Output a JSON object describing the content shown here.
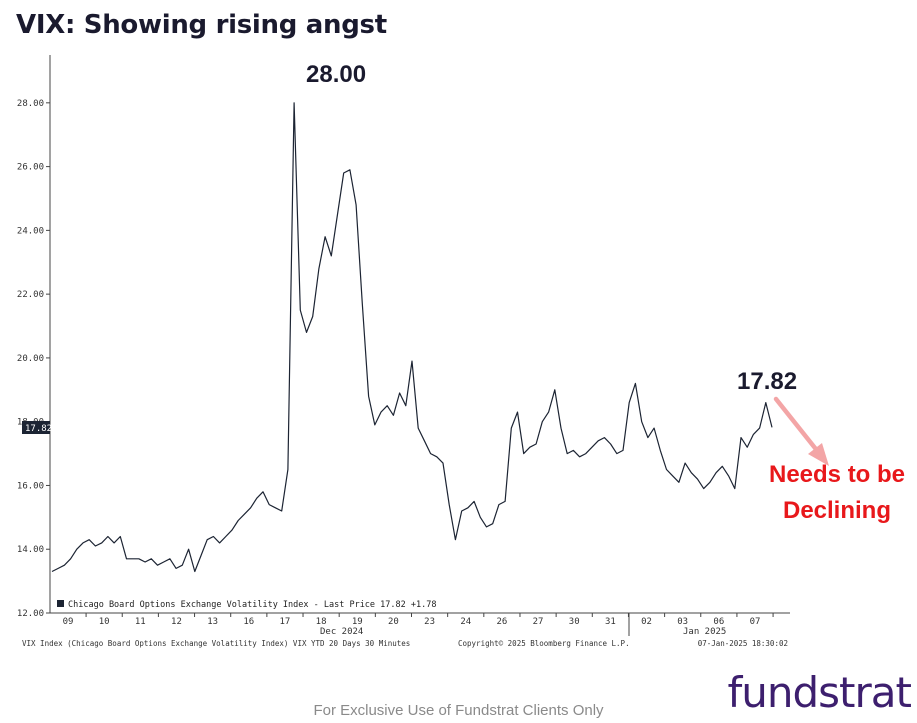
{
  "title": "VIX: Showing rising angst",
  "chart_data": {
    "type": "line",
    "series": [
      {
        "name": "Chicago Board Options Exchange Volatility Index - Last Price",
        "values": [
          13.3,
          13.4,
          13.5,
          13.7,
          14.0,
          14.2,
          14.3,
          14.1,
          14.2,
          14.4,
          14.2,
          14.4,
          13.7,
          13.7,
          13.7,
          13.6,
          13.7,
          13.5,
          13.6,
          13.7,
          13.4,
          13.5,
          14.0,
          13.3,
          13.8,
          14.3,
          14.4,
          14.2,
          14.4,
          14.6,
          14.9,
          15.1,
          15.3,
          15.6,
          15.8,
          15.4,
          15.3,
          15.2,
          16.5,
          28.0,
          21.5,
          20.8,
          21.3,
          22.8,
          23.8,
          23.2,
          24.5,
          25.8,
          25.9,
          24.8,
          21.7,
          18.8,
          17.9,
          18.3,
          18.5,
          18.2,
          18.9,
          18.5,
          19.9,
          17.8,
          17.4,
          17.0,
          16.9,
          16.7,
          15.4,
          14.3,
          15.2,
          15.3,
          15.5,
          15.0,
          14.7,
          14.8,
          15.4,
          15.5,
          17.8,
          18.3,
          17.0,
          17.2,
          17.3,
          18.0,
          18.3,
          19.0,
          17.8,
          17.0,
          17.1,
          16.9,
          17.0,
          17.2,
          17.4,
          17.5,
          17.3,
          17.0,
          17.1,
          18.6,
          19.2,
          18.0,
          17.5,
          17.8,
          17.1,
          16.5,
          16.3,
          16.1,
          16.7,
          16.4,
          16.2,
          15.9,
          16.1,
          16.4,
          16.6,
          16.3,
          15.9,
          17.5,
          17.2,
          17.6,
          17.8,
          18.6,
          17.82
        ]
      }
    ],
    "ylim": [
      12,
      29.5
    ],
    "yticks": [
      "12.00",
      "14.00",
      "16.00",
      "18.00",
      "20.00",
      "22.00",
      "24.00",
      "26.00",
      "28.00"
    ],
    "x_tick_labels": [
      "09",
      "10",
      "11",
      "12",
      "13",
      "16",
      "17",
      "18",
      "19",
      "20",
      "23",
      "24",
      "26",
      "27",
      "30",
      "31",
      "02",
      "03",
      "06",
      "07"
    ],
    "month_labels": [
      "Dec 2024",
      "Jan 2025"
    ],
    "last_price_label": "17.82",
    "legend": "Chicago Board Options Exchange Volatility Index - Last Price 17.82  +1.78",
    "annotations": {
      "peak": "28.00",
      "last": "17.82",
      "needs_line1": "Needs to be",
      "needs_line2": "Declining"
    },
    "footer": {
      "left": "VIX Index (Chicago Board Options Exchange Volatility Index) VIX YTD 20 Days 30 Minutes",
      "center": "Copyright© 2025 Bloomberg Finance L.P.",
      "right": "07-Jan-2025 18:30:02"
    },
    "grid": false,
    "line_color": "#1c2433"
  },
  "disclaimer": "For Exclusive Use of Fundstrat Clients Only",
  "logo": "fundstrat",
  "colors": {
    "accent_red": "#e8181b",
    "arrow": "#f3a5a6",
    "logo_purple": "#3d1f6e",
    "navy": "#1a1a2e"
  }
}
